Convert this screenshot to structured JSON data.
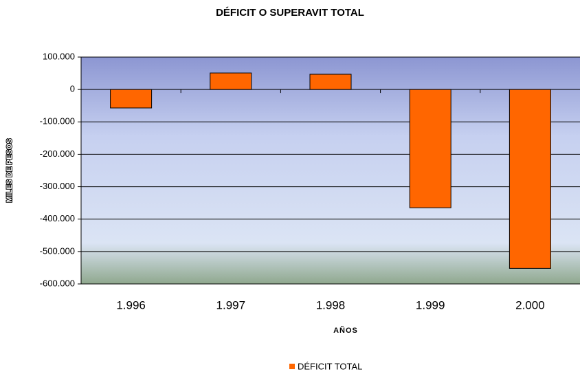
{
  "chart_data": {
    "type": "bar",
    "title": "DÉFICIT O SUPERAVIT TOTAL",
    "x_label": "AÑOS",
    "y_label": "MILES DE PESOS",
    "categories": [
      "1.996",
      "1.997",
      "1.998",
      "1.999",
      "2.000"
    ],
    "series": [
      {
        "name": "DÉFICIT TOTAL",
        "color": "#ff6600",
        "values": [
          -57000,
          51000,
          47000,
          -365000,
          -552000
        ]
      }
    ],
    "ylim": [
      -600000,
      100000
    ],
    "yticks": [
      {
        "value": -600000,
        "label": "-600.000"
      },
      {
        "value": -500000,
        "label": "-500.000"
      },
      {
        "value": -400000,
        "label": "-400.000"
      },
      {
        "value": -300000,
        "label": "-300.000"
      },
      {
        "value": -200000,
        "label": "-200.000"
      },
      {
        "value": -100000,
        "label": "-100.000"
      },
      0,
      {
        "value": 100000,
        "label": "100.000"
      }
    ],
    "grid": true,
    "legend": "bottom"
  }
}
